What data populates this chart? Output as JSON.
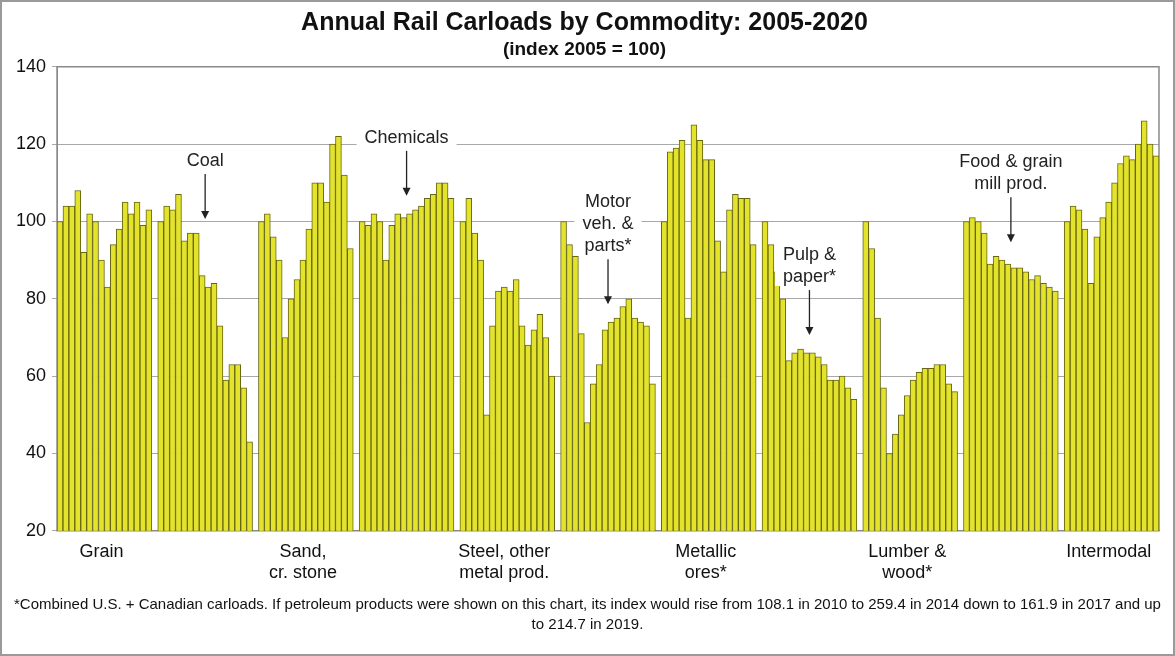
{
  "chart_data": {
    "type": "bar",
    "title": "Annual Rail Carloads by Commodity: 2005-2020",
    "subtitle": "(index 2005 = 100)",
    "categories": [
      null,
      null,
      null,
      null,
      null,
      null,
      null,
      "Grain",
      null,
      null,
      null,
      null,
      null,
      null,
      null,
      null,
      null,
      null,
      null,
      null,
      null,
      null,
      null,
      null,
      null,
      null,
      null,
      null,
      null,
      null,
      null,
      null,
      null,
      null,
      null,
      null,
      null,
      null,
      null,
      null,
      null,
      "Sand,\ncr. stone",
      null,
      null,
      null,
      null,
      null,
      null,
      null,
      null,
      null,
      null,
      null,
      null,
      null,
      null,
      null,
      null,
      null,
      null,
      null,
      null,
      null,
      null,
      null,
      null,
      null,
      null,
      null,
      null,
      null,
      null,
      null,
      null,
      null,
      "Steel, other\nmetal prod.",
      null,
      null,
      null,
      null,
      null,
      null,
      null,
      null,
      null,
      null,
      null,
      null,
      null,
      null,
      null,
      null,
      null,
      null,
      null,
      null,
      null,
      null,
      null,
      null,
      null,
      null,
      null,
      null,
      null,
      null,
      null,
      null,
      null,
      "Metallic\nores*",
      null,
      null,
      null,
      null,
      null,
      null,
      null,
      null,
      null,
      null,
      null,
      null,
      null,
      null,
      null,
      null,
      null,
      null,
      null,
      null,
      null,
      null,
      null,
      null,
      null,
      null,
      null,
      null,
      null,
      null,
      null,
      null,
      null,
      "Lumber &\nwood*",
      null,
      null,
      null,
      null,
      null,
      null,
      null,
      null,
      null,
      null,
      null,
      null,
      null,
      null,
      null,
      null,
      null,
      null,
      null,
      null,
      null,
      null,
      null,
      null,
      null,
      null,
      null,
      null,
      null,
      null,
      null,
      null,
      null,
      "Intermodal",
      null,
      null,
      null,
      null,
      null,
      null,
      null,
      null
    ],
    "series": [
      {
        "color": "#e3e32c",
        "values": [
          100,
          104,
          104,
          108,
          92,
          102,
          100,
          90,
          83,
          94,
          98,
          105,
          102,
          105,
          99,
          103,
          null,
          100,
          104,
          103,
          107,
          95,
          97,
          97,
          86,
          83,
          84,
          73,
          59,
          63,
          63,
          57,
          43,
          null,
          100,
          102,
          96,
          90,
          70,
          80,
          85,
          90,
          98,
          110,
          110,
          105,
          120,
          122,
          112,
          93,
          null,
          100,
          99,
          102,
          100,
          90,
          99,
          102,
          101,
          102,
          103,
          104,
          106,
          107,
          110,
          110,
          106,
          null,
          100,
          106,
          97,
          90,
          50,
          73,
          82,
          83,
          82,
          85,
          73,
          68,
          72,
          76,
          70,
          60,
          null,
          100,
          94,
          91,
          71,
          48,
          58,
          63,
          72,
          74,
          75,
          78,
          80,
          75,
          74,
          73,
          58,
          null,
          100,
          118,
          119,
          121,
          75,
          125,
          121,
          116,
          116,
          95,
          87,
          103,
          107,
          106,
          106,
          94,
          null,
          100,
          94,
          87,
          80,
          64,
          66,
          67,
          66,
          66,
          65,
          63,
          59,
          59,
          60,
          57,
          54,
          null,
          100,
          93,
          75,
          57,
          40,
          45,
          50,
          55,
          59,
          61,
          62,
          62,
          63,
          63,
          58,
          56,
          null,
          100,
          101,
          100,
          97,
          89,
          91,
          90,
          89,
          88,
          88,
          87,
          85,
          86,
          84,
          83,
          82,
          null,
          100,
          104,
          103,
          98,
          84,
          96,
          101,
          105,
          110,
          115,
          117,
          116,
          120,
          126,
          120,
          117
        ]
      }
    ],
    "ylim": [
      20,
      140
    ],
    "yticks": [
      20,
      40,
      60,
      80,
      100,
      120,
      140
    ],
    "grid": "y",
    "annotations": [
      "Coal",
      "Chemicals",
      "Motor\nveh. &\nparts*",
      "Pulp &\npaper*",
      "Food & grain\nmill prod.",
      "*Combined U.S. + Canadian carloads.    If petroleum products were shown on this chart, its index would rise from 108.1 in 2010 to 259.4 in 2014 down to 161.9 in 2017 and up to 214.7 in 2019."
    ]
  }
}
